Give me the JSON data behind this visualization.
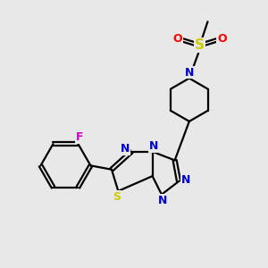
{
  "background_color": "#e8e8e8",
  "atom_colors": {
    "N": "#0000cc",
    "S_yellow": "#cccc00",
    "S_black": "#000000",
    "O": "#ff0000",
    "F": "#cc00cc",
    "C": "#000000"
  },
  "figsize": [
    3.0,
    3.0
  ],
  "dpi": 100
}
